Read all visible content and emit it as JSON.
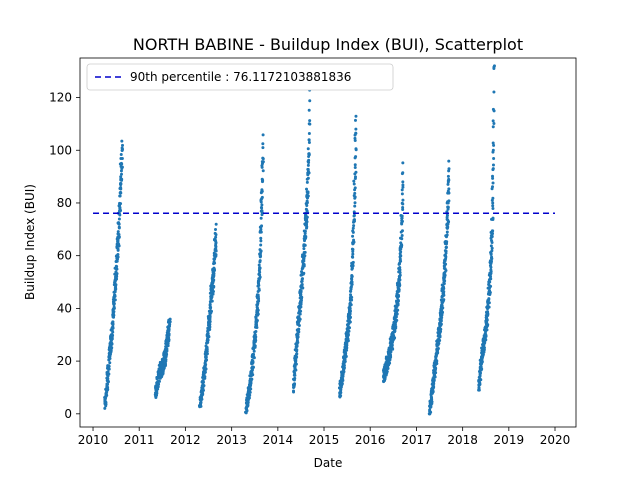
{
  "chart_data": {
    "type": "scatter",
    "title": "NORTH BABINE - Buildup Index (BUI), Scatterplot",
    "xlabel": "Date",
    "ylabel": "Buildup Index (BUI)",
    "xlim": [
      "2009-09-20",
      "2020-06-15"
    ],
    "ylim": [
      -5,
      135
    ],
    "x_ticks": [
      "2010",
      "2011",
      "2012",
      "2013",
      "2014",
      "2015",
      "2016",
      "2017",
      "2018",
      "2019",
      "2020"
    ],
    "y_ticks": [
      0,
      20,
      40,
      60,
      80,
      100,
      120
    ],
    "grid": false,
    "legend": {
      "placement": "top-left",
      "entries": [
        "90th percentile : 76.1172103881836"
      ]
    },
    "reference_line": {
      "label": "90th percentile : 76.1172103881836",
      "y": 76.1172103881836,
      "style": "dashed",
      "color": "#0000cc"
    },
    "point_color": "#1f77b4",
    "seasons": [
      {
        "start": "2010-04-05",
        "end": "2010-08-20",
        "points": [
          [
            0.0,
            4
          ],
          [
            0.1,
            9
          ],
          [
            0.18,
            16
          ],
          [
            0.25,
            22
          ],
          [
            0.32,
            25
          ],
          [
            0.4,
            30
          ],
          [
            0.48,
            38
          ],
          [
            0.55,
            45
          ],
          [
            0.62,
            52
          ],
          [
            0.7,
            58
          ],
          [
            0.76,
            66
          ],
          [
            0.82,
            72
          ],
          [
            0.86,
            78
          ],
          [
            0.9,
            84
          ],
          [
            0.95,
            95
          ],
          [
            1.0,
            100
          ]
        ]
      },
      {
        "start": "2011-05-10",
        "end": "2011-08-30",
        "points": [
          [
            0.0,
            8
          ],
          [
            0.15,
            12
          ],
          [
            0.3,
            16
          ],
          [
            0.5,
            18
          ],
          [
            0.7,
            22
          ],
          [
            0.85,
            28
          ],
          [
            1.0,
            34
          ]
        ]
      },
      {
        "start": "2012-04-25",
        "end": "2012-08-30",
        "points": [
          [
            0.0,
            3
          ],
          [
            0.12,
            8
          ],
          [
            0.25,
            14
          ],
          [
            0.38,
            22
          ],
          [
            0.5,
            30
          ],
          [
            0.62,
            38
          ],
          [
            0.74,
            46
          ],
          [
            0.85,
            52
          ],
          [
            0.92,
            60
          ],
          [
            1.0,
            68
          ]
        ]
      },
      {
        "start": "2013-04-25",
        "end": "2013-09-05",
        "points": [
          [
            0.0,
            2
          ],
          [
            0.12,
            6
          ],
          [
            0.25,
            12
          ],
          [
            0.4,
            20
          ],
          [
            0.55,
            30
          ],
          [
            0.7,
            42
          ],
          [
            0.8,
            55
          ],
          [
            0.88,
            70
          ],
          [
            0.94,
            85
          ],
          [
            1.0,
            101
          ]
        ]
      },
      {
        "start": "2014-05-05",
        "end": "2014-09-10",
        "points": [
          [
            0.0,
            10
          ],
          [
            0.1,
            18
          ],
          [
            0.2,
            26
          ],
          [
            0.32,
            36
          ],
          [
            0.45,
            46
          ],
          [
            0.58,
            56
          ],
          [
            0.68,
            64
          ],
          [
            0.78,
            74
          ],
          [
            0.86,
            82
          ],
          [
            0.92,
            92
          ],
          [
            0.96,
            104
          ],
          [
            1.0,
            124
          ]
        ]
      },
      {
        "start": "2015-05-05",
        "end": "2015-09-10",
        "points": [
          [
            0.0,
            8
          ],
          [
            0.15,
            14
          ],
          [
            0.28,
            20
          ],
          [
            0.4,
            26
          ],
          [
            0.52,
            32
          ],
          [
            0.65,
            40
          ],
          [
            0.75,
            50
          ],
          [
            0.84,
            65
          ],
          [
            0.92,
            85
          ],
          [
            1.0,
            108
          ]
        ]
      },
      {
        "start": "2016-04-15",
        "end": "2016-09-15",
        "points": [
          [
            0.0,
            14
          ],
          [
            0.15,
            18
          ],
          [
            0.3,
            22
          ],
          [
            0.45,
            28
          ],
          [
            0.58,
            34
          ],
          [
            0.7,
            42
          ],
          [
            0.8,
            50
          ],
          [
            0.88,
            60
          ],
          [
            0.94,
            72
          ],
          [
            1.0,
            88
          ]
        ]
      },
      {
        "start": "2017-04-15",
        "end": "2017-09-15",
        "points": [
          [
            0.0,
            1
          ],
          [
            0.1,
            6
          ],
          [
            0.22,
            14
          ],
          [
            0.35,
            22
          ],
          [
            0.48,
            30
          ],
          [
            0.6,
            38
          ],
          [
            0.72,
            48
          ],
          [
            0.82,
            60
          ],
          [
            0.9,
            72
          ],
          [
            0.96,
            80
          ],
          [
            1.0,
            93
          ]
        ]
      },
      {
        "start": "2018-05-10",
        "end": "2018-09-05",
        "points": [
          [
            0.0,
            10
          ],
          [
            0.12,
            18
          ],
          [
            0.25,
            24
          ],
          [
            0.38,
            28
          ],
          [
            0.5,
            34
          ],
          [
            0.62,
            42
          ],
          [
            0.72,
            50
          ],
          [
            0.8,
            58
          ],
          [
            0.87,
            68
          ],
          [
            0.92,
            80
          ],
          [
            0.96,
            100
          ],
          [
            1.0,
            131
          ]
        ]
      }
    ]
  }
}
